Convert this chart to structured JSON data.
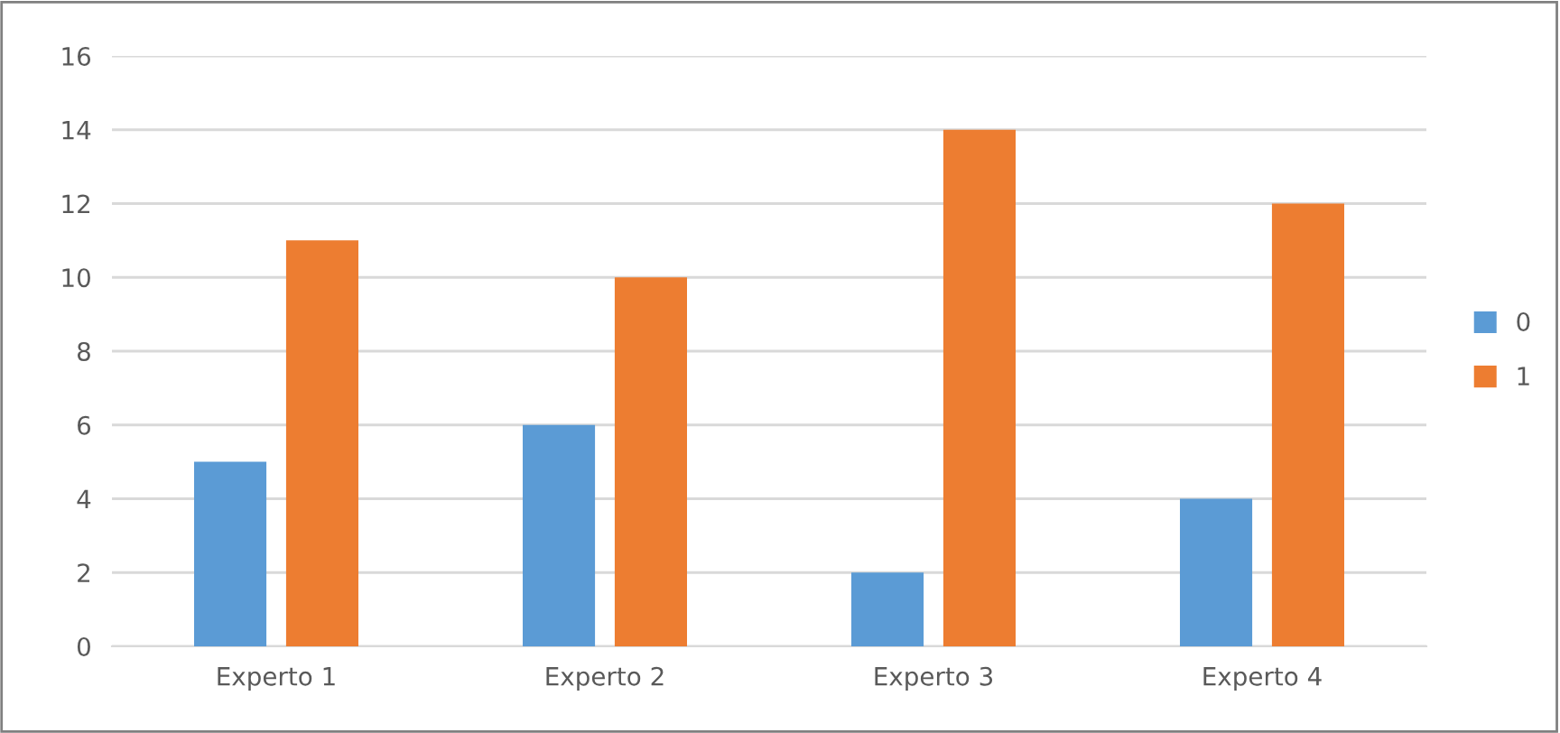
{
  "chart_data": {
    "type": "bar",
    "categories": [
      "Experto 1",
      "Experto 2",
      "Experto 3",
      "Experto 4"
    ],
    "series": [
      {
        "name": "0",
        "color": "#5b9bd5",
        "values": [
          5,
          6,
          2,
          4
        ]
      },
      {
        "name": "1",
        "color": "#ed7d31",
        "values": [
          11,
          10,
          14,
          12
        ]
      }
    ],
    "ylim": [
      0,
      16
    ],
    "yticks": [
      0,
      2,
      4,
      6,
      8,
      10,
      12,
      14,
      16
    ],
    "grid": "y",
    "legend": "right"
  }
}
